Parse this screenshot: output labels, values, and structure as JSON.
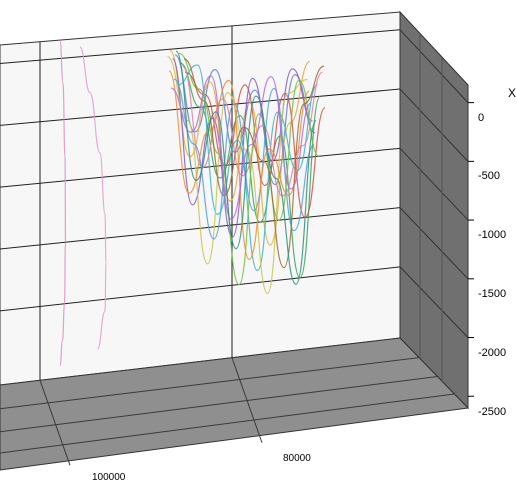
{
  "chart_data": {
    "type": "line",
    "projection": "3d",
    "axis_label_right": "X",
    "y_ticks": [
      "0",
      "-500",
      "-1000",
      "-1500",
      "-2000",
      "-2500"
    ],
    "x_ticks": [
      "100000",
      "80000"
    ],
    "ylim": [
      -2600,
      150
    ],
    "grid": true,
    "series": [
      {
        "color": "#d98fbf",
        "x": [
          128000,
          127400,
          127000,
          126900,
          127100,
          127500,
          128000
        ],
        "y": [
          150,
          -200,
          -800,
          -1500,
          -2000,
          -2300,
          -2500
        ]
      },
      {
        "color": "#e0a0c8",
        "x": [
          124000,
          122000,
          120000,
          119000,
          118800,
          119000,
          120500
        ],
        "y": [
          80,
          -300,
          -800,
          -1300,
          -1700,
          -2100,
          -2400
        ]
      },
      {
        "color": "#5b7fd6",
        "x": [
          105000,
          101000,
          97000,
          93000,
          89000,
          85000,
          81000,
          77000
        ],
        "y": [
          -50,
          -700,
          -200,
          -900,
          -400,
          -1200,
          -300,
          -800
        ]
      },
      {
        "color": "#3aa35c",
        "x": [
          104000,
          100000,
          96000,
          92000,
          88000,
          84000,
          80000,
          76000
        ],
        "y": [
          -120,
          -500,
          -1100,
          -600,
          -1500,
          -800,
          -2000,
          -500
        ]
      },
      {
        "color": "#e8a93b",
        "x": [
          106000,
          102000,
          98000,
          94000,
          90000,
          86000,
          82000,
          78000
        ],
        "y": [
          -10,
          -900,
          -300,
          -1300,
          -500,
          -1700,
          -700,
          -200
        ]
      },
      {
        "color": "#d8503f",
        "x": [
          103000,
          99000,
          95000,
          91000,
          87000,
          83000,
          79000,
          75000
        ],
        "y": [
          -200,
          -400,
          -1000,
          -350,
          -1200,
          -450,
          -1500,
          -600
        ]
      },
      {
        "color": "#8a5bc2",
        "x": [
          105500,
          101500,
          97500,
          93500,
          89500,
          85500,
          81500,
          77500
        ],
        "y": [
          -80,
          -1300,
          -600,
          -1600,
          -300,
          -1000,
          -250,
          -700
        ]
      },
      {
        "color": "#35b6c9",
        "x": [
          104500,
          100500,
          96500,
          92500,
          88500,
          84500,
          80500,
          76500
        ],
        "y": [
          -300,
          -150,
          -1400,
          -800,
          -1900,
          -600,
          -1100,
          -400
        ]
      },
      {
        "color": "#c9c64a",
        "x": [
          106500,
          102500,
          98500,
          94500,
          90500,
          86500,
          82500,
          78500
        ],
        "y": [
          -60,
          -600,
          -1800,
          -400,
          -900,
          -2100,
          -450,
          -350
        ]
      },
      {
        "color": "#e07fa8",
        "x": [
          103500,
          99500,
          95500,
          91500,
          87500,
          83500,
          79500,
          75500
        ],
        "y": [
          -150,
          -1000,
          -450,
          -1100,
          -700,
          -1300,
          -900,
          -300
        ]
      },
      {
        "color": "#4f9fe0",
        "x": [
          105200,
          101200,
          97200,
          93200,
          89200,
          85200,
          81200,
          77200
        ],
        "y": [
          -250,
          -800,
          -1600,
          -500,
          -1400,
          -400,
          -1600,
          -900
        ]
      },
      {
        "color": "#6dbf3f",
        "x": [
          104200,
          100200,
          96200,
          92200,
          88200,
          84200,
          80200,
          76200
        ],
        "y": [
          -40,
          -350,
          -900,
          -2000,
          -600,
          -1500,
          -350,
          -1000
        ]
      },
      {
        "color": "#f08d2f",
        "x": [
          106200,
          102200,
          98200,
          94200,
          90200,
          86200,
          82200,
          78200
        ],
        "y": [
          -180,
          -1200,
          -700,
          -300,
          -1800,
          -900,
          -1300,
          -450
        ]
      },
      {
        "color": "#9b6d3a",
        "x": [
          103200,
          99200,
          95200,
          91200,
          87200,
          83200,
          79200,
          75200
        ],
        "y": [
          -90,
          -450,
          -1250,
          -700,
          -1000,
          -1900,
          -550,
          -250
        ]
      },
      {
        "color": "#b36adf",
        "x": [
          105800,
          101800,
          97800,
          93800,
          89800,
          85800,
          81800,
          77800
        ],
        "y": [
          -320,
          -700,
          -250,
          -1450,
          -850,
          -300,
          -1250,
          -550
        ]
      },
      {
        "color": "#2f8f7f",
        "x": [
          104800,
          100800,
          96800,
          92800,
          88800,
          84800,
          80800,
          76800
        ],
        "y": [
          -20,
          -1100,
          -550,
          -1700,
          -450,
          -1150,
          -2050,
          -700
        ]
      }
    ]
  }
}
